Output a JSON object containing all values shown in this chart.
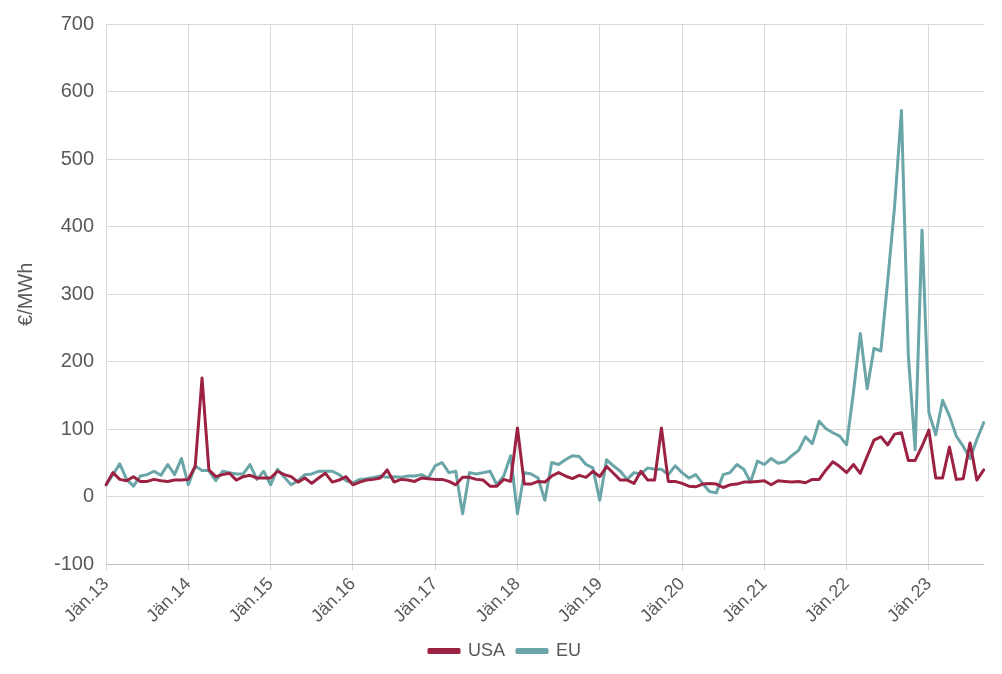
{
  "chart_data": {
    "type": "line",
    "ylabel": "€/MWh",
    "ylim": [
      -100,
      700
    ],
    "yticks": [
      -100,
      0,
      100,
      200,
      300,
      400,
      500,
      600,
      700
    ],
    "grid": true,
    "legend": "bottom",
    "marker": "none",
    "line_style": "solid",
    "categories": [
      "Jän.13",
      null,
      null,
      null,
      null,
      null,
      null,
      null,
      null,
      null,
      null,
      null,
      "Jän.14",
      null,
      null,
      null,
      null,
      null,
      null,
      null,
      null,
      null,
      null,
      null,
      "Jän.15",
      null,
      null,
      null,
      null,
      null,
      null,
      null,
      null,
      null,
      null,
      null,
      "Jän.16",
      null,
      null,
      null,
      null,
      null,
      null,
      null,
      null,
      null,
      null,
      null,
      "Jän.17",
      null,
      null,
      null,
      null,
      null,
      null,
      null,
      null,
      null,
      null,
      null,
      "Jän.18",
      null,
      null,
      null,
      null,
      null,
      null,
      null,
      null,
      null,
      null,
      null,
      "Jän.19",
      null,
      null,
      null,
      null,
      null,
      null,
      null,
      null,
      null,
      null,
      null,
      "Jän.20",
      null,
      null,
      null,
      null,
      null,
      null,
      null,
      null,
      null,
      null,
      null,
      "Jän.21",
      null,
      null,
      null,
      null,
      null,
      null,
      null,
      null,
      null,
      null,
      null,
      "Jän.22",
      null,
      null,
      null,
      null,
      null,
      null,
      null,
      null,
      null,
      null,
      null,
      "Jän.23",
      null,
      null,
      null,
      null,
      null,
      null,
      null,
      null
    ],
    "series": [
      {
        "name": "USA",
        "color": "#9b2242",
        "values": [
          18,
          36,
          26,
          24,
          30,
          23,
          23,
          26,
          24,
          23,
          25,
          25,
          26,
          45,
          176,
          40,
          30,
          33,
          35,
          25,
          30,
          32,
          28,
          28,
          28,
          38,
          33,
          30,
          22,
          28,
          20,
          28,
          35,
          22,
          25,
          30,
          18,
          22,
          25,
          26,
          28,
          40,
          22,
          26,
          25,
          23,
          28,
          27,
          26,
          26,
          23,
          18,
          29,
          29,
          26,
          25,
          16,
          16,
          26,
          23,
          102,
          19,
          19,
          23,
          22,
          31,
          36,
          31,
          27,
          32,
          29,
          38,
          30,
          45,
          35,
          25,
          25,
          20,
          38,
          25,
          25,
          102,
          23,
          23,
          20,
          16,
          15,
          19,
          20,
          19,
          14,
          18,
          19,
          22,
          22,
          23,
          24,
          18,
          24,
          23,
          22,
          23,
          21,
          26,
          26,
          40,
          52,
          45,
          36,
          48,
          35,
          60,
          84,
          89,
          77,
          93,
          95,
          54,
          54,
          75,
          99,
          28,
          28,
          74,
          26,
          27,
          80,
          25,
          40
        ]
      },
      {
        "name": "EU",
        "color": "#6aa5a8",
        "values": [
          18,
          33,
          49,
          26,
          16,
          31,
          33,
          38,
          32,
          48,
          33,
          57,
          18,
          46,
          39,
          39,
          24,
          38,
          36,
          34,
          34,
          48,
          26,
          38,
          18,
          41,
          29,
          18,
          24,
          33,
          34,
          38,
          38,
          38,
          33,
          24,
          21,
          26,
          27,
          29,
          31,
          29,
          30,
          29,
          31,
          31,
          33,
          28,
          46,
          51,
          36,
          38,
          -25,
          36,
          34,
          36,
          38,
          18,
          31,
          61,
          -25,
          36,
          34,
          28,
          -5,
          51,
          48,
          55,
          61,
          60,
          48,
          43,
          -5,
          55,
          46,
          38,
          26,
          36,
          34,
          43,
          41,
          41,
          33,
          46,
          36,
          28,
          33,
          20,
          8,
          6,
          33,
          36,
          48,
          41,
          22,
          53,
          48,
          57,
          50,
          52,
          61,
          69,
          89,
          79,
          112,
          101,
          95,
          90,
          77,
          155,
          242,
          160,
          220,
          216,
          320,
          430,
          572,
          210,
          70,
          395,
          125,
          92,
          143,
          120,
          90,
          75,
          57,
          85,
          110
        ]
      }
    ]
  }
}
